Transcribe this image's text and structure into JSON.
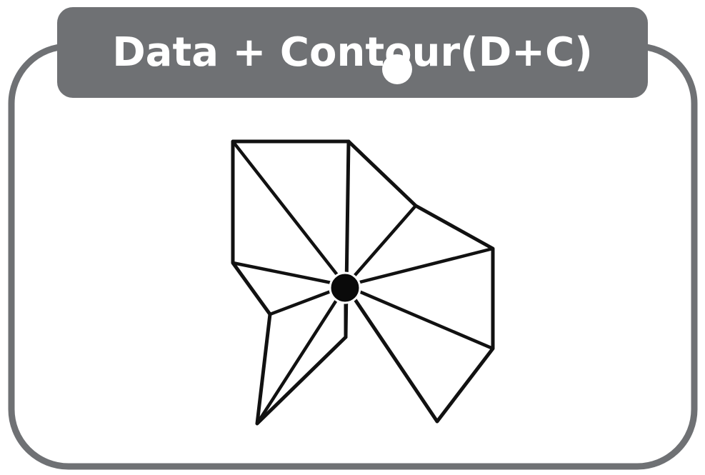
{
  "panel": {
    "title": "Data + Contour(D+C)"
  },
  "colors": {
    "frame_stroke": "#6f7174",
    "title_bar": "#6f7174",
    "title_text": "#ffffff",
    "mesh_stroke": "#111111",
    "center_node": "#0a0a0a",
    "marker_dot": "#ffffff"
  }
}
